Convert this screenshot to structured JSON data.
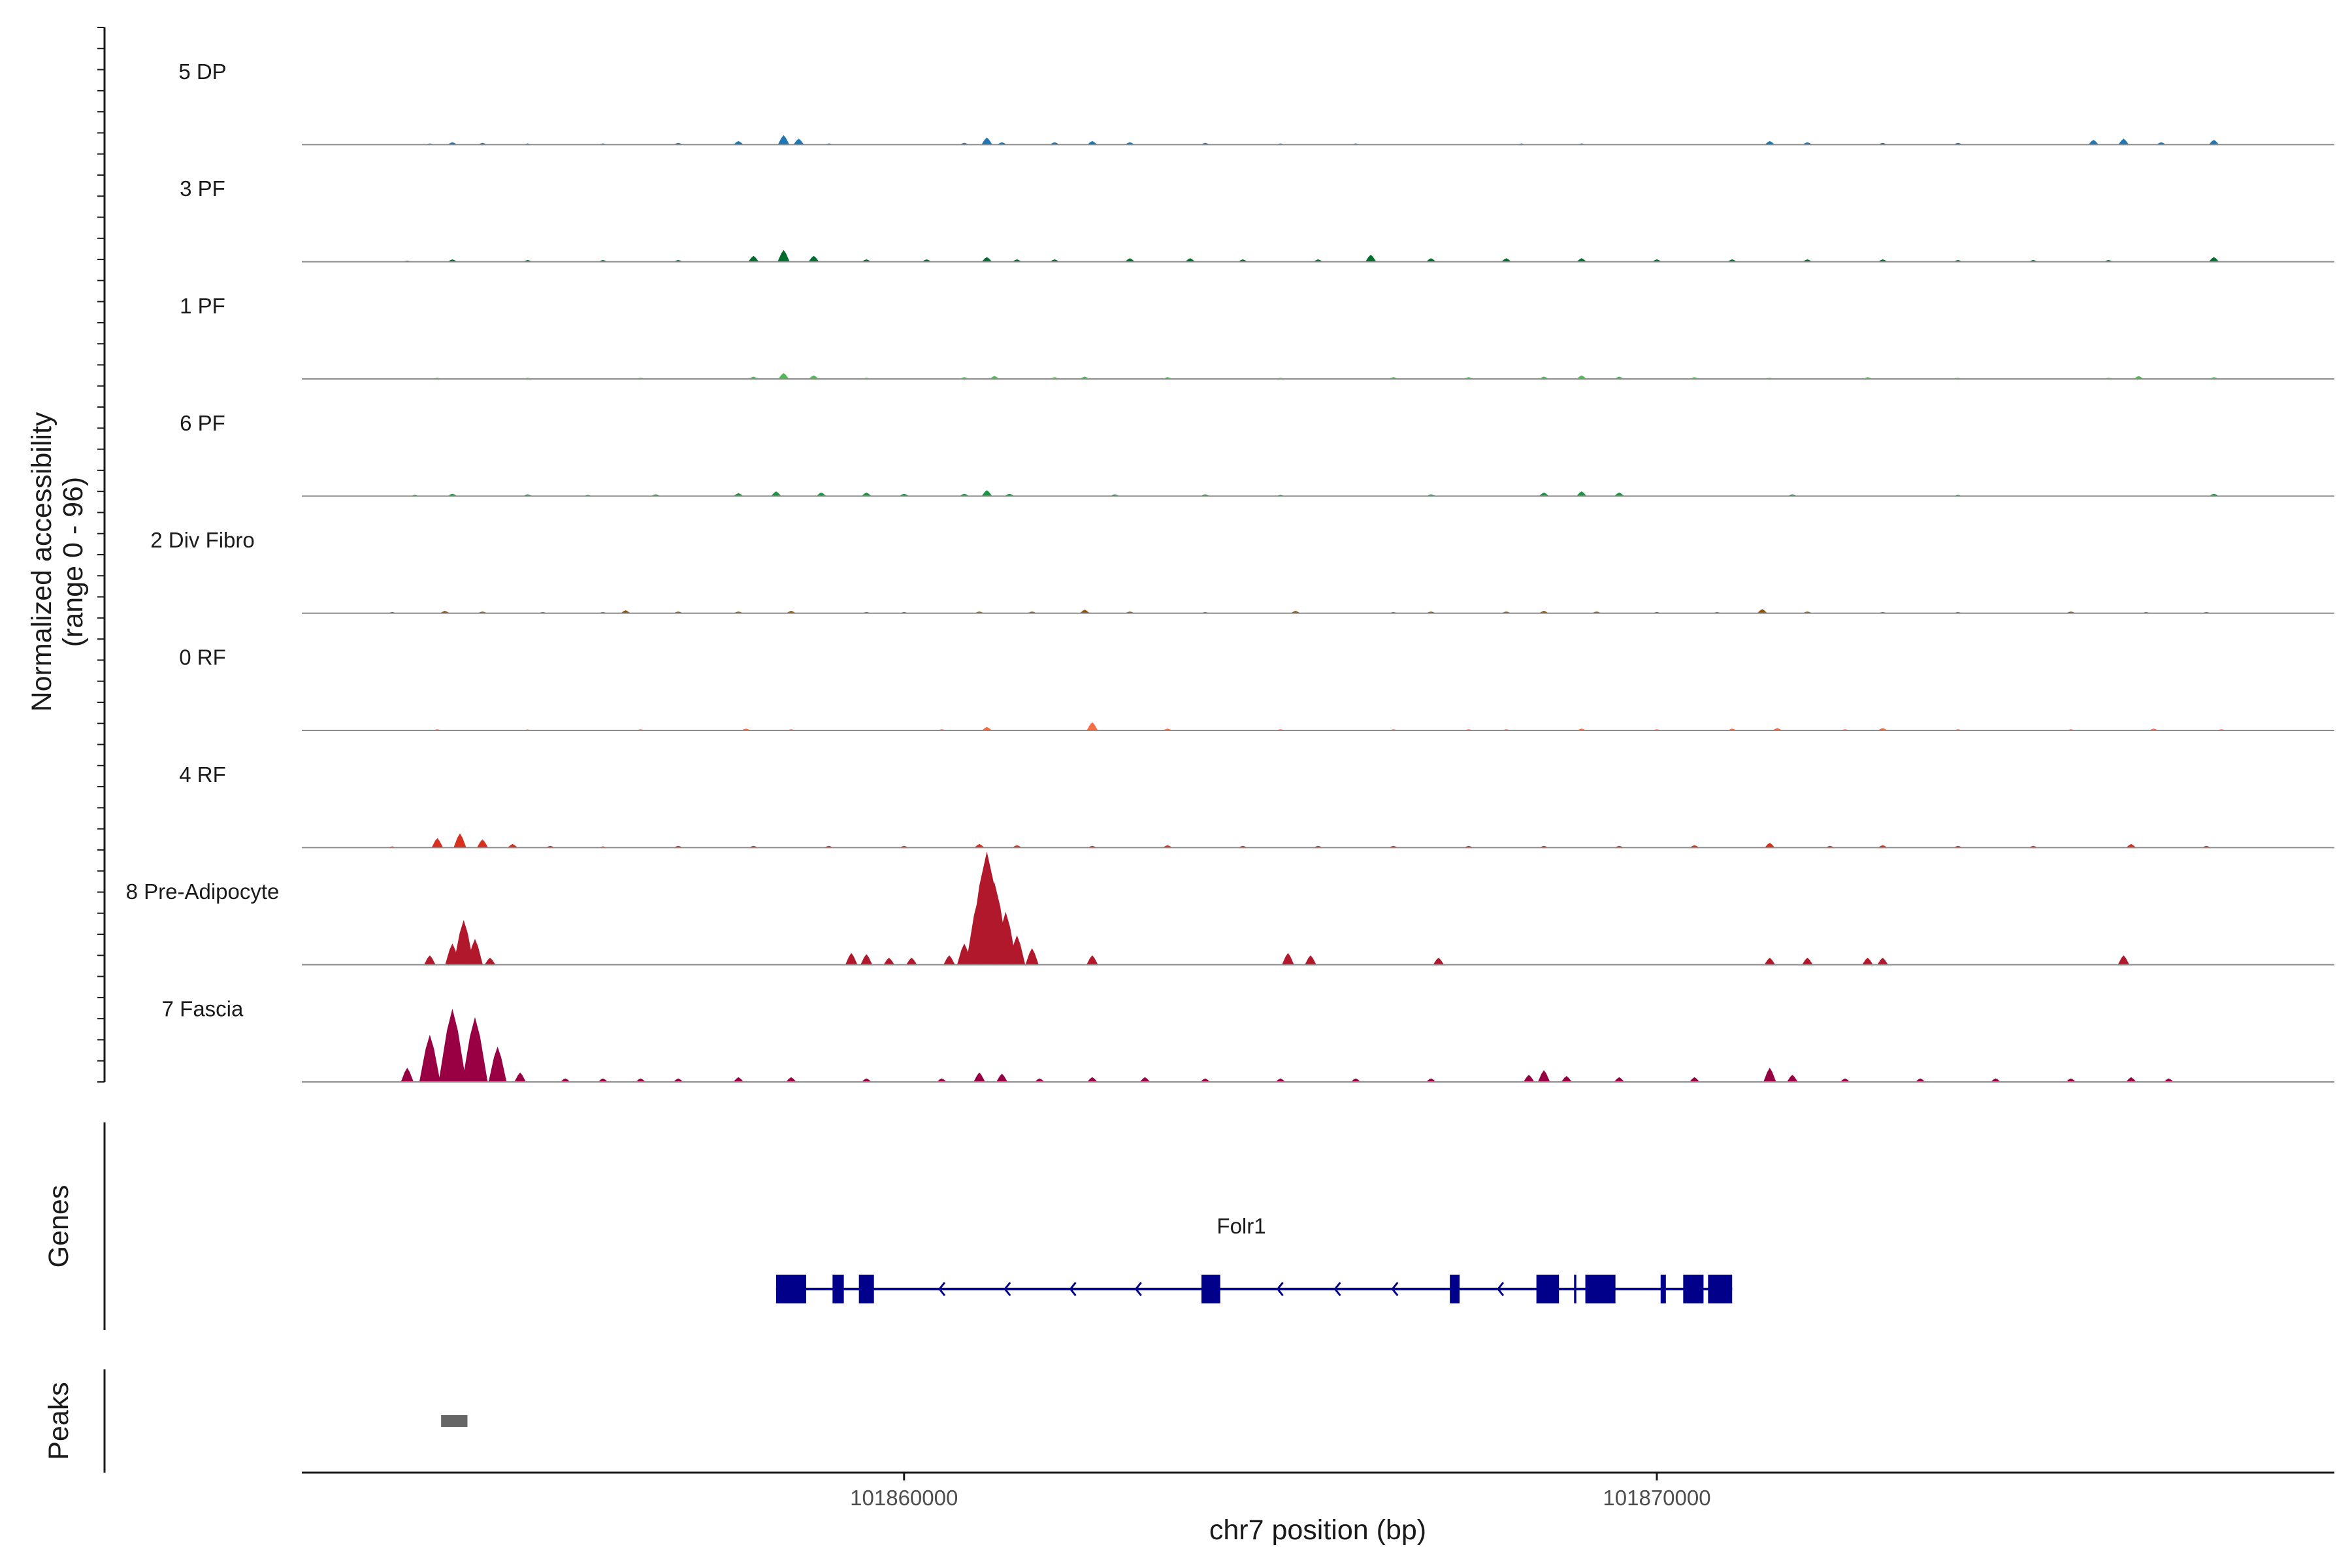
{
  "chart_data": {
    "type": "area",
    "region": "chr7",
    "y_axis_title": "Normalized accessibility",
    "y_axis_subtitle": "(range 0 - 96)",
    "y_range": [
      0,
      96
    ],
    "x_axis_title": "chr7 position (bp)",
    "x_range": [
      101852000,
      101879000
    ],
    "x_ticks": [
      101860000,
      101870000
    ],
    "x_tick_labels": [
      "101860000",
      "101870000"
    ],
    "grid": false,
    "legend": "none",
    "tracks": [
      {
        "name": "5 DP",
        "color": "#1f78b4",
        "points": [
          [
            101853700,
            1
          ],
          [
            101854000,
            2
          ],
          [
            101854400,
            1.5
          ],
          [
            101855000,
            1
          ],
          [
            101856000,
            1
          ],
          [
            101857000,
            1.5
          ],
          [
            101857800,
            3
          ],
          [
            101858400,
            8
          ],
          [
            101858600,
            5
          ],
          [
            101859000,
            1
          ],
          [
            101860800,
            1.5
          ],
          [
            101861100,
            6
          ],
          [
            101861300,
            2
          ],
          [
            101862000,
            2
          ],
          [
            101862500,
            3
          ],
          [
            101863000,
            2
          ],
          [
            101864000,
            1.5
          ],
          [
            101865000,
            1
          ],
          [
            101866000,
            1
          ],
          [
            101868200,
            1
          ],
          [
            101869000,
            1
          ],
          [
            101871500,
            3
          ],
          [
            101872000,
            2
          ],
          [
            101873000,
            1.5
          ],
          [
            101874000,
            1.5
          ],
          [
            101875800,
            4
          ],
          [
            101876200,
            5
          ],
          [
            101876700,
            2
          ],
          [
            101877400,
            4
          ]
        ]
      },
      {
        "name": "3 PF",
        "color": "#006d2c",
        "points": [
          [
            101853400,
            1
          ],
          [
            101854000,
            2
          ],
          [
            101855000,
            1.5
          ],
          [
            101856000,
            1.5
          ],
          [
            101857000,
            1.5
          ],
          [
            101858000,
            5
          ],
          [
            101858400,
            10
          ],
          [
            101858800,
            5
          ],
          [
            101859500,
            2
          ],
          [
            101860300,
            2
          ],
          [
            101861100,
            4
          ],
          [
            101861500,
            2
          ],
          [
            101862000,
            2
          ],
          [
            101863000,
            3
          ],
          [
            101863800,
            3
          ],
          [
            101864500,
            2
          ],
          [
            101865500,
            2
          ],
          [
            101866200,
            6
          ],
          [
            101867000,
            3
          ],
          [
            101868000,
            3
          ],
          [
            101869000,
            3
          ],
          [
            101870000,
            2
          ],
          [
            101871000,
            2
          ],
          [
            101872000,
            2
          ],
          [
            101873000,
            2
          ],
          [
            101874000,
            1.5
          ],
          [
            101875000,
            1.5
          ],
          [
            101876000,
            1.5
          ],
          [
            101877400,
            4
          ]
        ]
      },
      {
        "name": "1 PF",
        "color": "#5ab45a",
        "points": [
          [
            101853800,
            1
          ],
          [
            101855000,
            1
          ],
          [
            101856500,
            1
          ],
          [
            101858000,
            2
          ],
          [
            101858400,
            5
          ],
          [
            101858800,
            3
          ],
          [
            101859500,
            1
          ],
          [
            101860800,
            1.5
          ],
          [
            101861200,
            2.5
          ],
          [
            101862000,
            1.5
          ],
          [
            101862400,
            2
          ],
          [
            101863500,
            1.5
          ],
          [
            101865000,
            1
          ],
          [
            101866500,
            1.5
          ],
          [
            101867500,
            1.5
          ],
          [
            101868500,
            2
          ],
          [
            101869000,
            3
          ],
          [
            101869500,
            2
          ],
          [
            101870500,
            1.5
          ],
          [
            101871500,
            1
          ],
          [
            101872800,
            1.5
          ],
          [
            101874000,
            1
          ],
          [
            101876000,
            1
          ],
          [
            101876400,
            2.5
          ],
          [
            101877400,
            1.5
          ]
        ]
      },
      {
        "name": "6 PF",
        "color": "#1a9641",
        "points": [
          [
            101853500,
            1
          ],
          [
            101854000,
            2
          ],
          [
            101855000,
            1.5
          ],
          [
            101855800,
            1
          ],
          [
            101856700,
            1.5
          ],
          [
            101857800,
            2.5
          ],
          [
            101858300,
            4
          ],
          [
            101858900,
            3
          ],
          [
            101859500,
            3
          ],
          [
            101860000,
            2
          ],
          [
            101860800,
            2
          ],
          [
            101861100,
            5
          ],
          [
            101861400,
            2
          ],
          [
            101862800,
            1.5
          ],
          [
            101864000,
            1.5
          ],
          [
            101865000,
            1
          ],
          [
            101867000,
            1.5
          ],
          [
            101868500,
            3
          ],
          [
            101869000,
            4
          ],
          [
            101869500,
            3
          ],
          [
            101871800,
            1.5
          ],
          [
            101874000,
            1
          ],
          [
            101877400,
            2
          ]
        ]
      },
      {
        "name": "2 Div Fibro",
        "color": "#8c510a",
        "points": [
          [
            101853200,
            1
          ],
          [
            101853900,
            2
          ],
          [
            101854400,
            1.5
          ],
          [
            101855200,
            1
          ],
          [
            101856000,
            1
          ],
          [
            101856300,
            2.5
          ],
          [
            101857000,
            1.5
          ],
          [
            101857800,
            1.5
          ],
          [
            101858500,
            2
          ],
          [
            101859500,
            1
          ],
          [
            101860000,
            1
          ],
          [
            101861000,
            1.5
          ],
          [
            101861700,
            1.5
          ],
          [
            101862400,
            3
          ],
          [
            101863000,
            1.5
          ],
          [
            101864000,
            1
          ],
          [
            101865200,
            2
          ],
          [
            101866500,
            1
          ],
          [
            101867000,
            1.5
          ],
          [
            101868000,
            1.5
          ],
          [
            101868500,
            2
          ],
          [
            101869200,
            1.5
          ],
          [
            101870000,
            1
          ],
          [
            101870800,
            1
          ],
          [
            101871400,
            3.5
          ],
          [
            101872000,
            1.5
          ],
          [
            101873000,
            1
          ],
          [
            101874000,
            1
          ],
          [
            101875500,
            1.5
          ],
          [
            101876500,
            1
          ],
          [
            101877300,
            1
          ]
        ]
      },
      {
        "name": "0 RF",
        "color": "#f46d43",
        "points": [
          [
            101853800,
            1
          ],
          [
            101855000,
            0.8
          ],
          [
            101856500,
            1
          ],
          [
            101857900,
            1.5
          ],
          [
            101858500,
            1
          ],
          [
            101860500,
            1
          ],
          [
            101861100,
            3
          ],
          [
            101862500,
            7
          ],
          [
            101863500,
            1.5
          ],
          [
            101865000,
            1
          ],
          [
            101866500,
            1
          ],
          [
            101867500,
            1
          ],
          [
            101868000,
            1
          ],
          [
            101869000,
            1.5
          ],
          [
            101870000,
            1
          ],
          [
            101871000,
            1.5
          ],
          [
            101871600,
            2
          ],
          [
            101872500,
            1
          ],
          [
            101873000,
            2
          ],
          [
            101874000,
            1
          ],
          [
            101875500,
            1
          ],
          [
            101876600,
            1.5
          ],
          [
            101877500,
            1
          ]
        ]
      },
      {
        "name": "4 RF",
        "color": "#d7301f",
        "points": [
          [
            101853200,
            1
          ],
          [
            101853800,
            8
          ],
          [
            101854100,
            12
          ],
          [
            101854400,
            7
          ],
          [
            101854800,
            3
          ],
          [
            101855300,
            1.5
          ],
          [
            101856000,
            1
          ],
          [
            101857000,
            1.5
          ],
          [
            101858000,
            1.5
          ],
          [
            101859000,
            1.5
          ],
          [
            101860000,
            1.5
          ],
          [
            101861000,
            3
          ],
          [
            101861500,
            2
          ],
          [
            101862500,
            1.5
          ],
          [
            101863500,
            2
          ],
          [
            101864500,
            1.5
          ],
          [
            101865500,
            1.5
          ],
          [
            101866500,
            1.5
          ],
          [
            101867500,
            1.5
          ],
          [
            101868500,
            1.5
          ],
          [
            101869500,
            1.5
          ],
          [
            101870500,
            2
          ],
          [
            101871500,
            4
          ],
          [
            101872300,
            1.5
          ],
          [
            101873000,
            2
          ],
          [
            101874000,
            1.5
          ],
          [
            101875000,
            1.5
          ],
          [
            101876300,
            3
          ],
          [
            101877300,
            1.5
          ]
        ]
      },
      {
        "name": "8 Pre-Adipocyte",
        "color": "#b2182b",
        "points": [
          [
            101853700,
            8
          ],
          [
            101854000,
            18
          ],
          [
            101854150,
            38
          ],
          [
            101854300,
            22
          ],
          [
            101854500,
            6
          ],
          [
            101859300,
            10
          ],
          [
            101859500,
            9
          ],
          [
            101859800,
            6
          ],
          [
            101860100,
            6
          ],
          [
            101860600,
            8
          ],
          [
            101860800,
            18
          ],
          [
            101861000,
            60
          ],
          [
            101861100,
            96
          ],
          [
            101861200,
            70
          ],
          [
            101861350,
            45
          ],
          [
            101861500,
            25
          ],
          [
            101861700,
            14
          ],
          [
            101862500,
            8
          ],
          [
            101865100,
            10
          ],
          [
            101865400,
            8
          ],
          [
            101867100,
            6
          ],
          [
            101871500,
            6
          ],
          [
            101872000,
            6
          ],
          [
            101872800,
            6
          ],
          [
            101873000,
            6
          ],
          [
            101876200,
            8
          ]
        ]
      },
      {
        "name": "7 Fascia",
        "color": "#980043",
        "points": [
          [
            101853400,
            12
          ],
          [
            101853700,
            40
          ],
          [
            101854000,
            62
          ],
          [
            101854300,
            55
          ],
          [
            101854600,
            30
          ],
          [
            101854900,
            8
          ],
          [
            101855500,
            3
          ],
          [
            101856000,
            3
          ],
          [
            101856500,
            3
          ],
          [
            101857000,
            3
          ],
          [
            101857800,
            4
          ],
          [
            101858500,
            4
          ],
          [
            101859500,
            3
          ],
          [
            101860500,
            3
          ],
          [
            101861000,
            8
          ],
          [
            101861300,
            7
          ],
          [
            101861800,
            3
          ],
          [
            101862500,
            4
          ],
          [
            101863200,
            4
          ],
          [
            101864000,
            3
          ],
          [
            101865000,
            3
          ],
          [
            101866000,
            3
          ],
          [
            101867000,
            3
          ],
          [
            101868300,
            6
          ],
          [
            101868500,
            10
          ],
          [
            101868800,
            5
          ],
          [
            101869500,
            4
          ],
          [
            101870500,
            4
          ],
          [
            101871500,
            12
          ],
          [
            101871800,
            6
          ],
          [
            101872500,
            3
          ],
          [
            101873500,
            3
          ],
          [
            101874500,
            3
          ],
          [
            101875500,
            3
          ],
          [
            101876300,
            4
          ],
          [
            101876800,
            3
          ]
        ]
      }
    ],
    "gene": {
      "name": "Folr1",
      "color": "#00008b",
      "strand": "-",
      "start": 101858300,
      "end": 101871000,
      "exons": [
        [
          101858300,
          101858700
        ],
        [
          101859050,
          101859200
        ],
        [
          101859400,
          101859600
        ],
        [
          101863950,
          101864200
        ],
        [
          101867250,
          101867380
        ],
        [
          101868400,
          101868700
        ],
        [
          101869050,
          101869450
        ],
        [
          101870050,
          101870120
        ],
        [
          101870350,
          101870620
        ],
        [
          101870680,
          101871000
        ]
      ],
      "thin_segments": [
        [
          101868900,
          101868930
        ]
      ]
    },
    "peaks": {
      "color": "#666666",
      "regions": [
        [
          101853850,
          101854200
        ]
      ]
    }
  },
  "panels": {
    "genes_label": "Genes",
    "peaks_label": "Peaks"
  }
}
